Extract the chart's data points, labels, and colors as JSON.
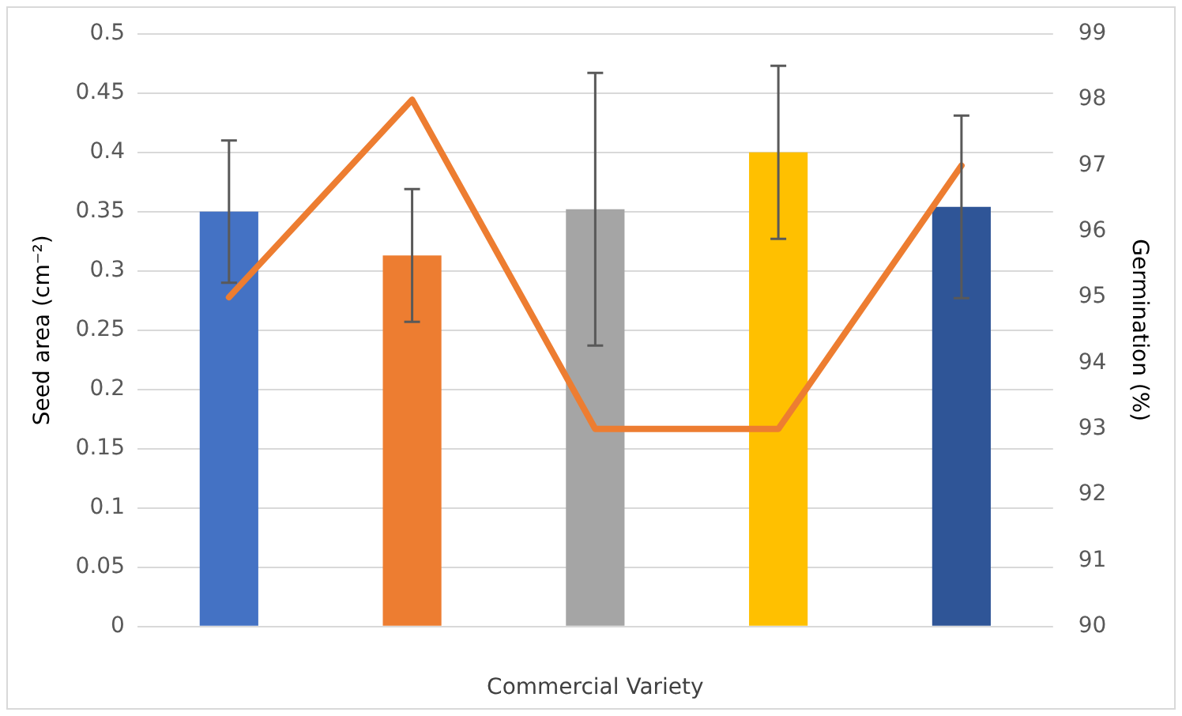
{
  "chart_data": {
    "type": "bar",
    "xlabel": "Commercial Variety",
    "ylabel": "Seed area (cm⁻²)",
    "y2label": "Germination (%)",
    "categories": [
      null,
      null,
      null,
      null,
      null
    ],
    "series": [
      {
        "colors": [
          "#4472c4",
          "#ed7d31",
          "#a5a5a5",
          "#ffc000",
          "#2f5597"
        ],
        "values": [
          0.35,
          0.313,
          0.352,
          0.4,
          0.354
        ],
        "errors": [
          0.06,
          0.056,
          0.115,
          0.073,
          0.077
        ]
      },
      {
        "type": "line",
        "axis": "y2",
        "color": "#ed7d31",
        "values": [
          95,
          98,
          93,
          93,
          97
        ]
      }
    ],
    "ylim": [
      0,
      0.5
    ],
    "yticks": [
      0,
      0.05,
      0.1,
      0.15,
      0.2,
      0.25,
      0.3,
      0.35,
      0.4,
      0.45,
      0.5
    ],
    "y2lim": [
      90,
      99
    ],
    "y2ticks": [
      90,
      91,
      92,
      93,
      94,
      95,
      96,
      97,
      98,
      99
    ],
    "grid": "y",
    "legend": false,
    "marker": "none"
  }
}
